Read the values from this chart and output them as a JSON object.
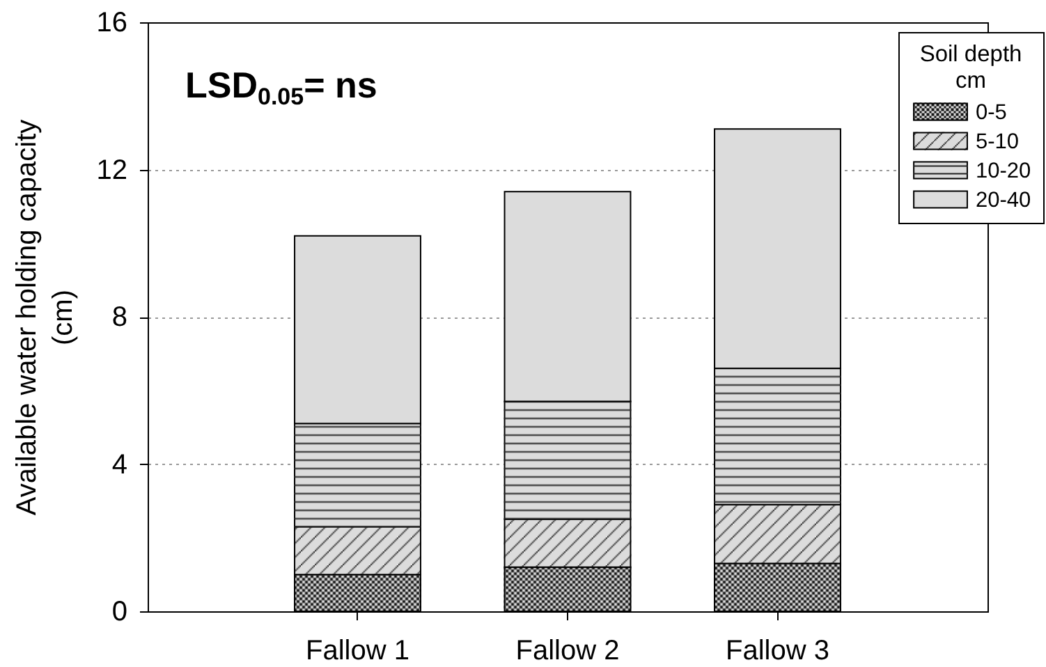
{
  "chart_data": {
    "type": "bar",
    "categories": [
      "Fallow 1",
      "Fallow 2",
      "Fallow 3"
    ],
    "series": [
      {
        "name": "0-5",
        "color": "#dcdcdc",
        "values": [
          1.0,
          1.2,
          1.3
        ]
      },
      {
        "name": "5-10",
        "color": "#dcdcdc",
        "values": [
          1.3,
          1.3,
          1.6
        ]
      },
      {
        "name": "10-20",
        "color": "#dcdcdc",
        "values": [
          2.8,
          3.2,
          3.7
        ]
      },
      {
        "name": "20-40",
        "color": "#dcdcdc",
        "values": [
          5.1,
          5.7,
          6.5
        ]
      }
    ],
    "stacked": true,
    "ylabel": "Available water holding capacity\n(cm)",
    "ylim": [
      0,
      16
    ],
    "yticks": [
      0,
      4,
      8,
      12,
      16
    ],
    "grid": "y",
    "legend": "top right",
    "legend_title": "Soil depth\ncm",
    "annotations": [
      "LSD$_{0.05}$= ns"
    ]
  }
}
